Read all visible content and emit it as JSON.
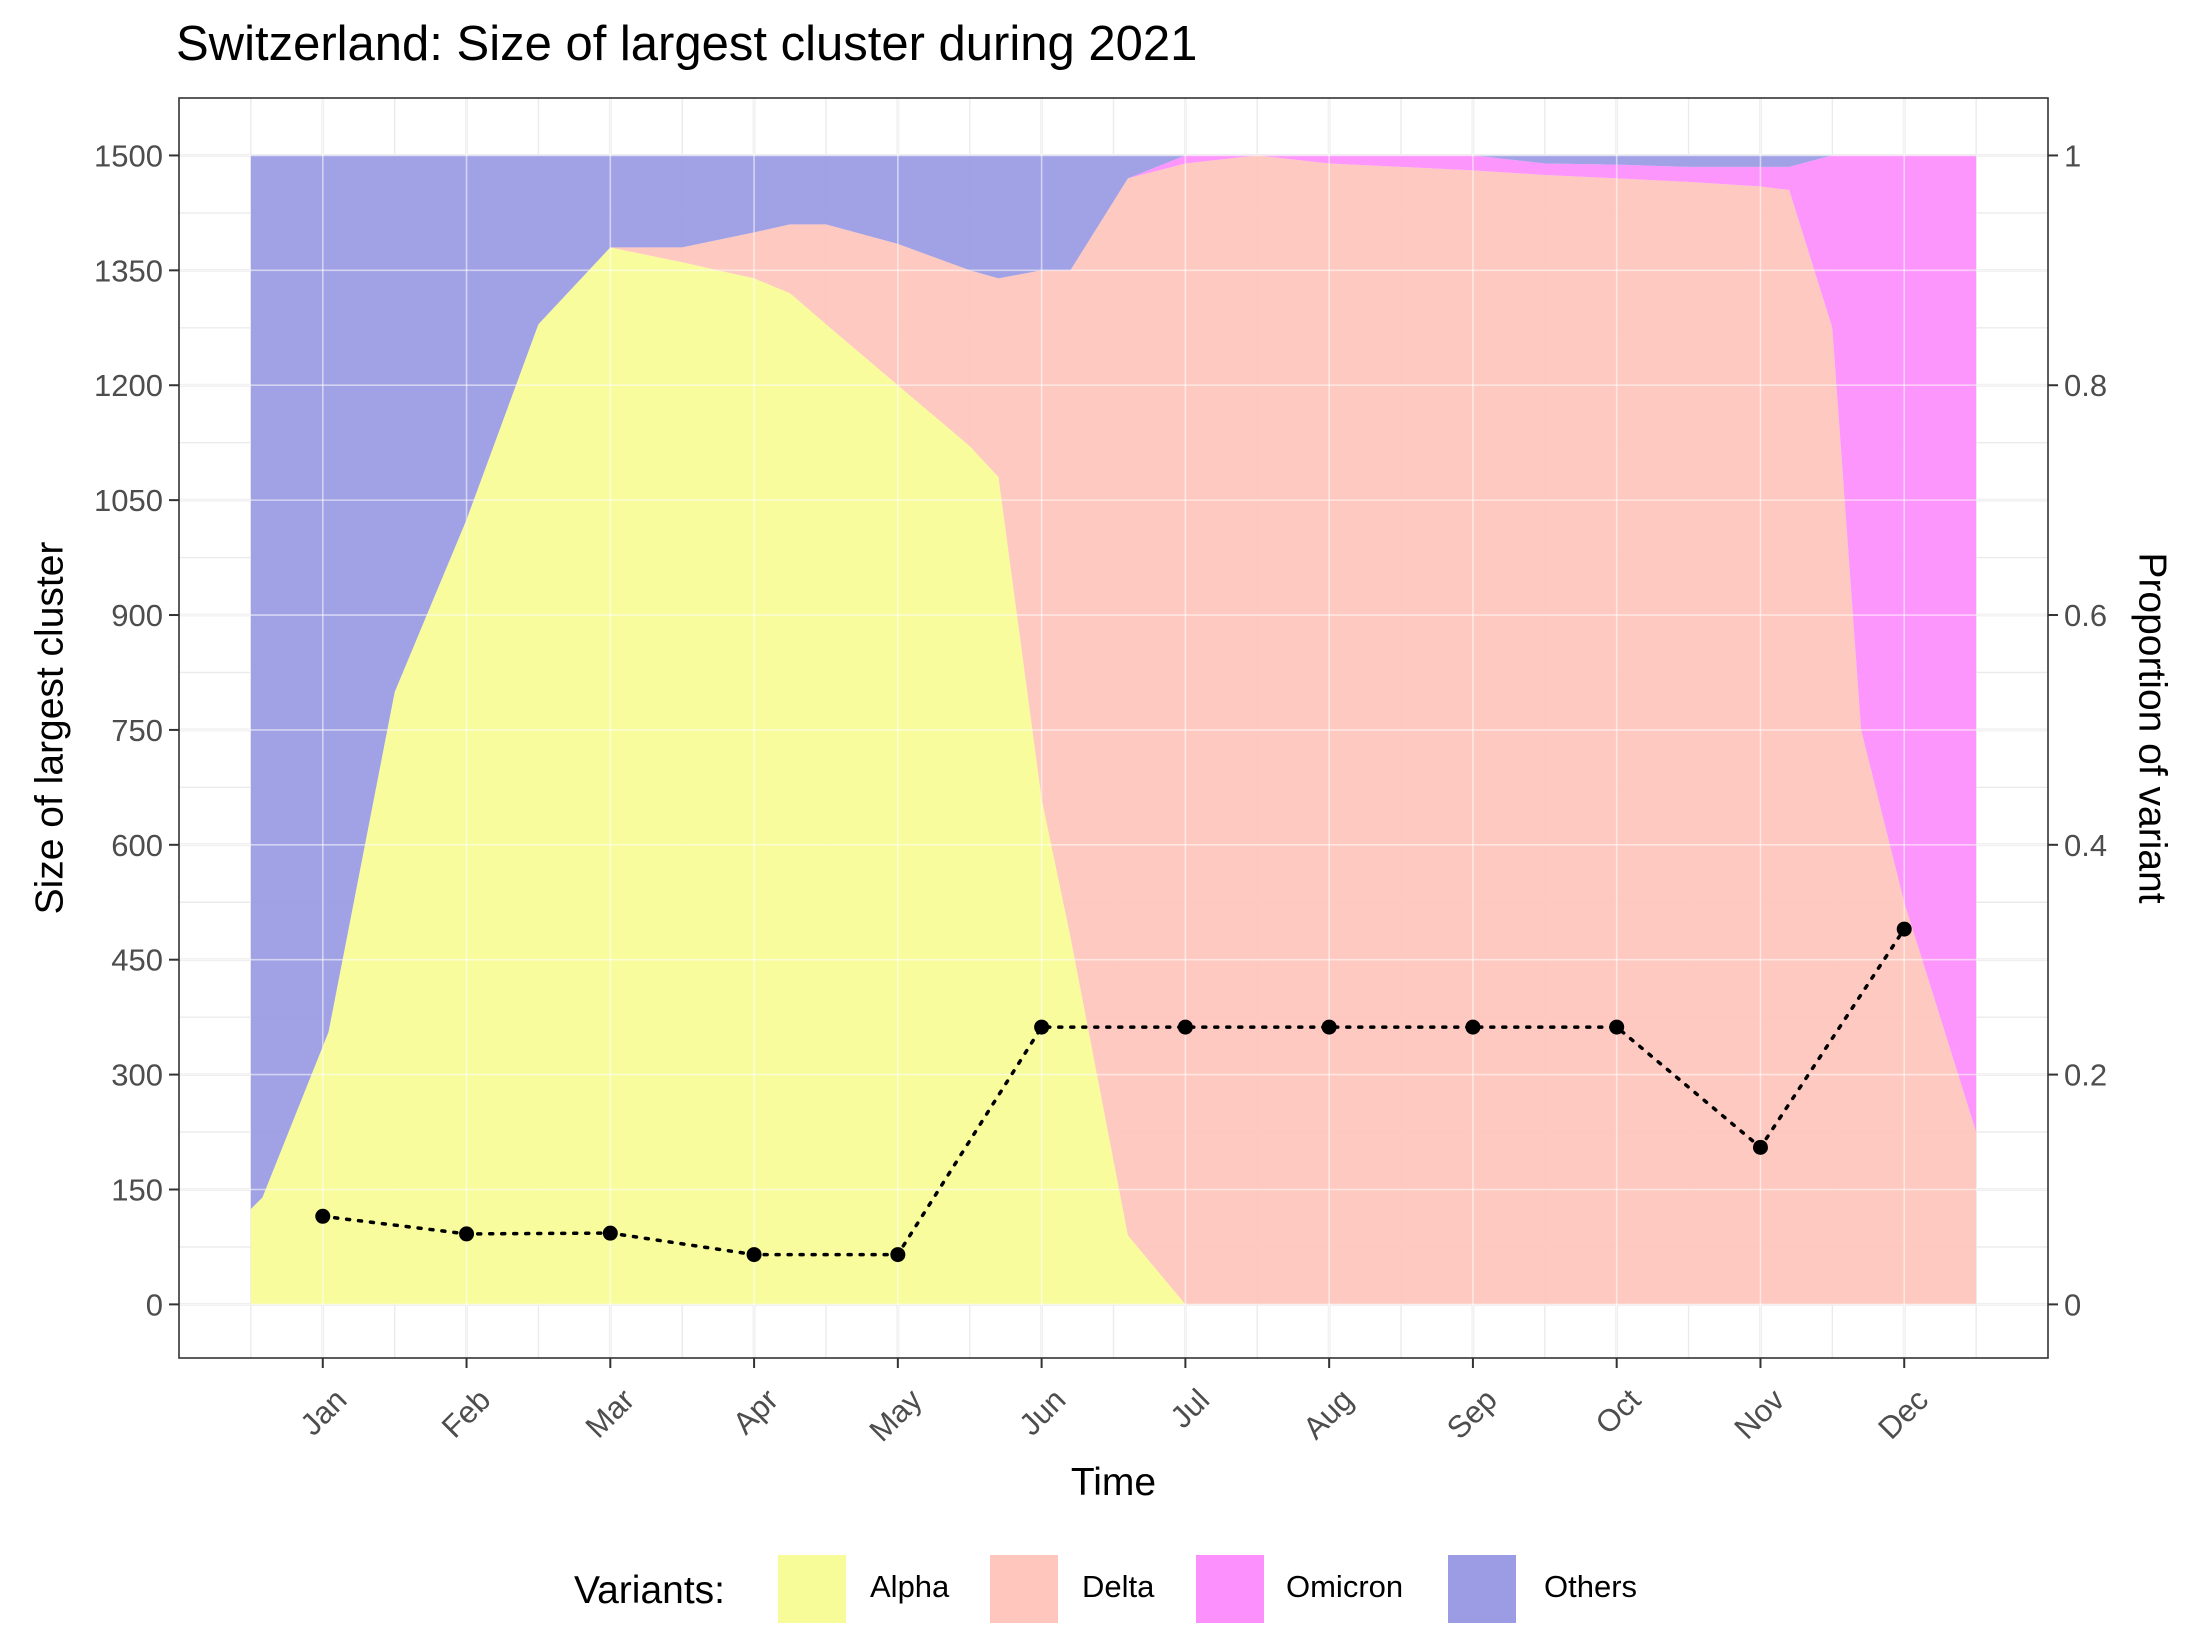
{
  "chart_data": {
    "type": "area",
    "title": "Switzerland: Size of largest cluster during 2021",
    "xlabel": "Time",
    "ylabel": "Size of largest cluster",
    "ylabel_right": "Proportion of variant",
    "x_ticks": [
      "Jan",
      "Feb",
      "Mar",
      "Apr",
      "May",
      "Jun",
      "Jul",
      "Aug",
      "Sep",
      "Oct",
      "Nov",
      "Dec"
    ],
    "y_ticks": [
      "0",
      "150",
      "300",
      "450",
      "600",
      "750",
      "900",
      "1050",
      "1200",
      "1350",
      "1500"
    ],
    "y_right_ticks": [
      "0",
      "0.2",
      "0.4",
      "0.6",
      "0.8",
      "1"
    ],
    "ylim": [
      -70,
      1575
    ],
    "xlim": [
      -1,
      12
    ],
    "y_right_lim": [
      0,
      1
    ],
    "grid": true,
    "legend": {
      "title": "Variants:",
      "position": "bottom",
      "items": [
        {
          "label": "Alpha",
          "color": "#f8fc98"
        },
        {
          "label": "Delta",
          "color": "#fec6bd"
        },
        {
          "label": "Omicron",
          "color": "#fc90fc"
        },
        {
          "label": "Others",
          "color": "#9c9ce4"
        }
      ]
    },
    "area_x": [
      -0.5,
      -0.42,
      0.04,
      0.5,
      1.0,
      1.5,
      2.0,
      2.5,
      3.0,
      3.25,
      3.5,
      4.0,
      4.5,
      4.7,
      5.0,
      5.2,
      5.6,
      6.0,
      6.5,
      7.0,
      7.5,
      8.0,
      8.5,
      9.0,
      9.5,
      10.0,
      10.2,
      10.5,
      10.7,
      11.0,
      11.25,
      11.5
    ],
    "stacked_proportions": [
      {
        "name": "Alpha",
        "color": "#f8fc98",
        "values": [
          0.083,
          0.093,
          0.237,
          0.533,
          0.683,
          0.853,
          0.92,
          0.907,
          0.893,
          0.88,
          0.853,
          0.8,
          0.747,
          0.72,
          0.44,
          0.32,
          0.06,
          0.0,
          0.0,
          0.0,
          0.0,
          0.0,
          0.0,
          0.0,
          0.0,
          0.0,
          0.0,
          0.0,
          0.0,
          0.0,
          0.0,
          0.0
        ]
      },
      {
        "name": "Delta",
        "color": "#fec6bd",
        "values": [
          0.0,
          0.0,
          0.0,
          0.0,
          0.0,
          0.0,
          0.0,
          0.013,
          0.04,
          0.06,
          0.087,
          0.123,
          0.153,
          0.173,
          0.46,
          0.58,
          0.92,
          0.993,
          1.0,
          0.993,
          0.99,
          0.987,
          0.983,
          0.98,
          0.977,
          0.973,
          0.97,
          0.85,
          0.5,
          0.35,
          0.25,
          0.15
        ]
      },
      {
        "name": "Omicron",
        "color": "#fc90fc",
        "values": [
          0.0,
          0.0,
          0.0,
          0.0,
          0.0,
          0.0,
          0.0,
          0.0,
          0.0,
          0.0,
          0.0,
          0.0,
          0.0,
          0.0,
          0.0,
          0.0,
          0.0,
          0.007,
          0.0,
          0.007,
          0.01,
          0.013,
          0.01,
          0.012,
          0.013,
          0.017,
          0.02,
          0.15,
          0.5,
          0.65,
          0.75,
          0.85
        ]
      },
      {
        "name": "Others",
        "color": "#9c9ce4",
        "values": [
          0.917,
          0.907,
          0.763,
          0.467,
          0.317,
          0.147,
          0.08,
          0.08,
          0.067,
          0.06,
          0.06,
          0.077,
          0.1,
          0.107,
          0.1,
          0.1,
          0.02,
          0.0,
          0.0,
          0.0,
          0.0,
          0.0,
          0.007,
          0.008,
          0.01,
          0.01,
          0.01,
          0.0,
          0.0,
          0.0,
          0.0,
          0.0
        ]
      }
    ],
    "line_series": {
      "name": "Size of largest cluster",
      "style": "dotted",
      "x": [
        0,
        1,
        2,
        3,
        4,
        5,
        6,
        7,
        8,
        9,
        10,
        11
      ],
      "values": [
        115,
        92,
        93,
        65,
        65,
        362,
        362,
        362,
        362,
        362,
        205,
        490
      ]
    }
  }
}
